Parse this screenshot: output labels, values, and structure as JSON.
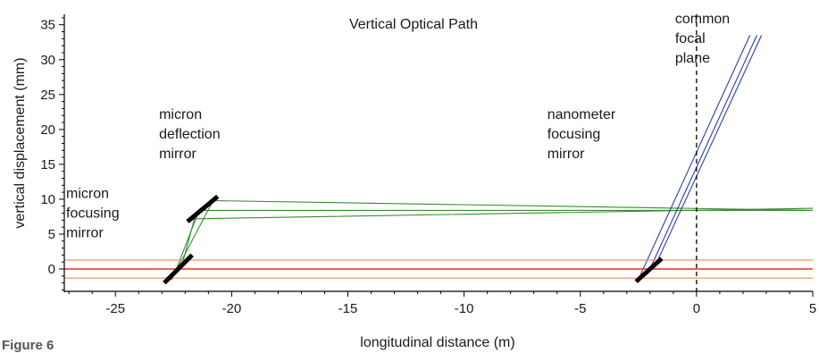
{
  "chart_data": {
    "type": "line",
    "title": "Vertical Optical Path",
    "xlabel": "longitudinal distance (m)",
    "ylabel": "vertical displacement (mm)",
    "xlim": [
      -27.2,
      5
    ],
    "ylim": [
      -3.2,
      36.5
    ],
    "x_ticks": [
      -25,
      -20,
      -15,
      -10,
      -5,
      0,
      5
    ],
    "y_ticks": [
      0,
      5,
      10,
      15,
      20,
      25,
      30,
      35
    ],
    "grid": false,
    "colors": {
      "micron_rays": "#3c8a34",
      "nanometer_rays": "#2b3fa8",
      "center_beam": "#e0331e",
      "envelope_beam": "#f08a55",
      "mirrors": "#000000",
      "focal_plane": "#000000"
    },
    "series": [
      {
        "group": "micron_rays",
        "points": [
          [
            -22.6,
            -1.6
          ],
          [
            -20.8,
            9.8
          ],
          [
            5,
            8.4
          ]
        ]
      },
      {
        "group": "micron_rays",
        "points": [
          [
            -22.4,
            -0.2
          ],
          [
            -21.4,
            8.4
          ],
          [
            5,
            8.4
          ]
        ]
      },
      {
        "group": "micron_rays",
        "points": [
          [
            -22.1,
            1.0
          ],
          [
            -21.6,
            7.2
          ],
          [
            5,
            8.7
          ]
        ]
      },
      {
        "group": "nanometer_rays",
        "points": [
          [
            -2.5,
            -1.5
          ],
          [
            2.3,
            33.5
          ]
        ]
      },
      {
        "group": "nanometer_rays",
        "points": [
          [
            -2.1,
            -0.7
          ],
          [
            2.6,
            33.5
          ]
        ]
      },
      {
        "group": "nanometer_rays",
        "points": [
          [
            -1.8,
            0.3
          ],
          [
            2.8,
            33.5
          ]
        ]
      },
      {
        "group": "center_beam",
        "points": [
          [
            -27.2,
            0
          ],
          [
            5,
            0
          ]
        ]
      },
      {
        "group": "envelope_beam",
        "points": [
          [
            -27.2,
            1.3
          ],
          [
            5,
            1.3
          ]
        ]
      },
      {
        "group": "envelope_beam",
        "points": [
          [
            -27.2,
            -1.3
          ],
          [
            5,
            -1.3
          ]
        ]
      }
    ],
    "mirrors": [
      {
        "points": [
          [
            -22.9,
            -2.0
          ],
          [
            -21.7,
            2.0
          ]
        ]
      },
      {
        "points": [
          [
            -21.9,
            6.8
          ],
          [
            -20.6,
            10.4
          ]
        ]
      },
      {
        "points": [
          [
            -2.6,
            -1.8
          ],
          [
            -1.5,
            1.5
          ]
        ]
      }
    ],
    "focal_plane_x": 0,
    "annotations": [
      {
        "lines": [
          "micron",
          "focusing",
          "mirror"
        ],
        "x": -27.2,
        "y": 10.2
      },
      {
        "lines": [
          "micron",
          "deflection",
          "mirror"
        ],
        "x": -23.2,
        "y": 21.5
      },
      {
        "lines": [
          "nanometer",
          "focusing",
          "mirror"
        ],
        "x": -6.5,
        "y": 21.5
      },
      {
        "lines": [
          "common",
          "focal",
          "plane"
        ],
        "x": -1.0,
        "y": 35.2
      }
    ]
  },
  "footer": {
    "text": "Figure 6"
  }
}
